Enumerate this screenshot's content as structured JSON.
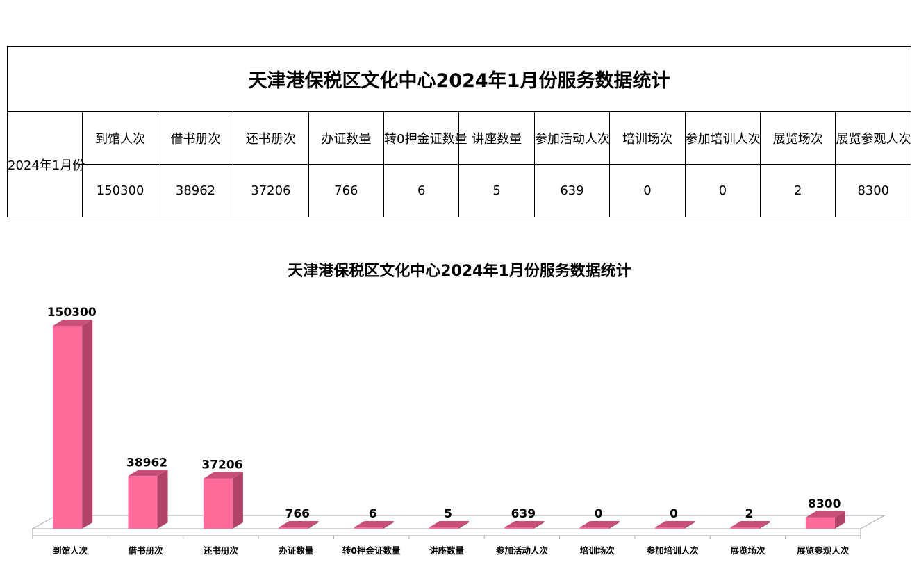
{
  "table": {
    "title": "天津港保税区文化中心2024年1月份服务数据统计",
    "period": "2024年1月份",
    "headers": [
      "到馆人次",
      "借书册次",
      "还书册次",
      "办证数量",
      "转0押金证数量",
      "讲座数量",
      "参加活动人次",
      "培训场次",
      "参加培训人次",
      "展览场次",
      "展览参观人次"
    ],
    "values": [
      "150300",
      "38962",
      "37206",
      "766",
      "6",
      "5",
      "639",
      "0",
      "0",
      "2",
      "8300"
    ]
  },
  "chart_data": {
    "type": "bar",
    "title": "天津港保税区文化中心2024年1月份服务数据统计",
    "categories": [
      "到馆人次",
      "借书册次",
      "还书册次",
      "办证数量",
      "转0押金证数量",
      "讲座数量",
      "参加活动人次",
      "培训场次",
      "参加培训人次",
      "展览场次",
      "展览参观人次"
    ],
    "values": [
      150300,
      38962,
      37206,
      766,
      6,
      5,
      639,
      0,
      0,
      2,
      8300
    ],
    "data_labels": true,
    "grid": false,
    "legend": "none",
    "style": "3d-column",
    "colors": {
      "bar_front": "#ff6b9b",
      "bar_side": "#b04468",
      "bar_top": "#c85078",
      "floor": "#ffffff",
      "axis": "#aaaaaa"
    }
  }
}
